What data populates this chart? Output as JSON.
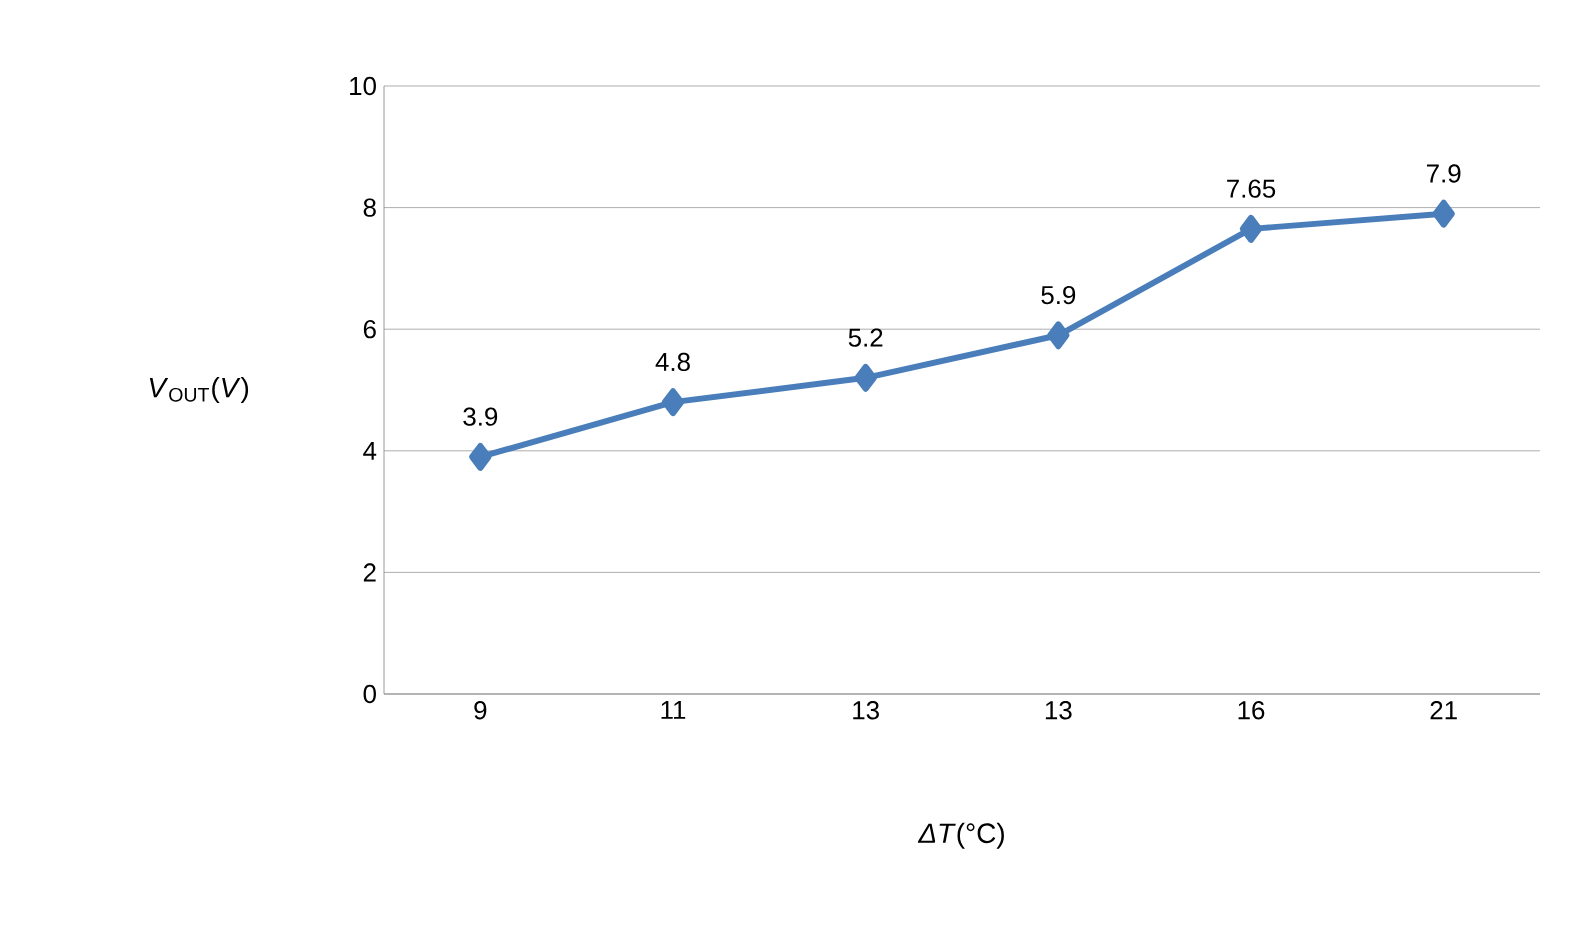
{
  "chart_data": {
    "type": "line",
    "xlabel": "*ΔT*(°C)",
    "ylabel": "*V*$_{OUT}$(*V*)",
    "categories": [
      "9",
      "11",
      "13",
      "13",
      "16",
      "21"
    ],
    "values": [
      3.9,
      4.8,
      5.2,
      5.9,
      7.65,
      7.9
    ],
    "color": "#4a7ebb",
    "marker": "diamond",
    "line_style": "solid",
    "ylim": [
      0,
      10
    ],
    "yticks": [
      0,
      2,
      4,
      6,
      8,
      10
    ],
    "grid": "y",
    "data_labels": true
  }
}
